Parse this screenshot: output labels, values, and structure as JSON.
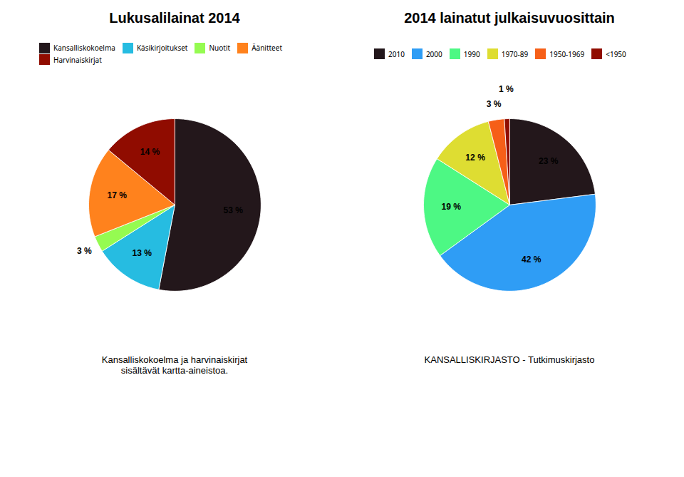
{
  "chart_data": [
    {
      "type": "pie",
      "title": "Lukusalilainat 2014",
      "categories": [
        "Kansalliskokoelma",
        "Käsikirjoitukset",
        "Nuotit",
        "Äänitteet",
        "Harvinaiskirjat"
      ],
      "values": [
        53,
        13,
        3,
        17,
        14
      ],
      "value_labels": [
        "53 %",
        "13 %",
        "3 %",
        "17 %",
        "14 %"
      ],
      "data_labels": true,
      "legend": "top",
      "annotations": [
        "Kansalliskokoelma ja harvinaiskirjat\nsisältävät kartta-aineistoa."
      ]
    },
    {
      "type": "pie",
      "title": "2014 lainatut julkaisuvuosittain",
      "categories": [
        "2010",
        "2000",
        "1990",
        "1970-89",
        "1950-1969",
        "<1950"
      ],
      "values": [
        23,
        42,
        19,
        12,
        3,
        1
      ],
      "value_labels": [
        "23 %",
        "42 %",
        "19 %",
        "12 %",
        "3 %",
        "1 %"
      ],
      "data_labels": true,
      "legend": "top",
      "annotations": [
        "KANSALLISKIRJASTO - Tutkimuskirjasto"
      ]
    }
  ]
}
